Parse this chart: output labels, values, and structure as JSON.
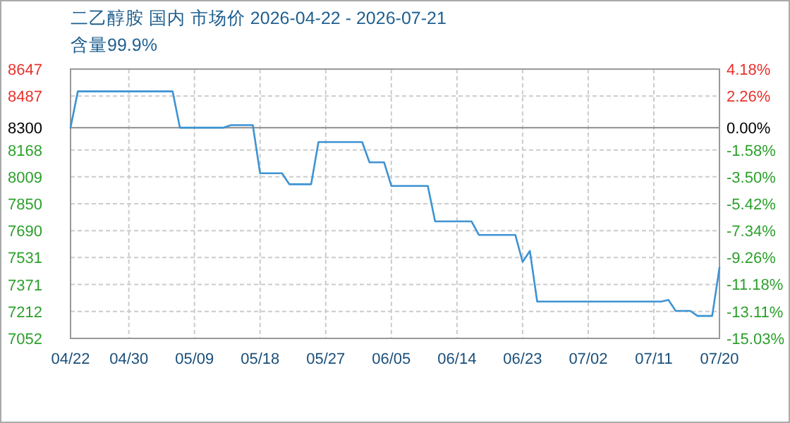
{
  "chart_data": {
    "type": "line",
    "title": "二乙醇胺 国内 市场价 2026-04-22 - 2026-07-21",
    "subtitle": "含量99.9%",
    "x": [
      "--04-22",
      "--04-23",
      "--05-06",
      "--05-07",
      "--05-13",
      "--05-14",
      "--05-17",
      "--05-18",
      "--05-21",
      "--05-22",
      "--05-25",
      "--05-26",
      "--06-01",
      "--06-02",
      "--06-04",
      "--06-05",
      "--06-10",
      "--06-11",
      "--06-16",
      "--06-17",
      "--06-22",
      "--06-23",
      "--06-24",
      "--06-25",
      "--07-12",
      "--07-13",
      "--07-14",
      "--07-16",
      "--07-17",
      "--07-19",
      "--07-20"
    ],
    "series": [
      {
        "color": "#3d93d3",
        "values": [
          8300,
          8515,
          8515,
          8300,
          8300,
          8315,
          8315,
          8030,
          8030,
          7965,
          7965,
          8215,
          8215,
          8095,
          8095,
          7955,
          7955,
          7745,
          7745,
          7665,
          7665,
          7505,
          7570,
          7270,
          7270,
          7280,
          7215,
          7215,
          7185,
          7185,
          7470
        ]
      }
    ],
    "xlim": [
      "--04-22",
      "--07-20"
    ],
    "xticks": [
      {
        "value": "--04-22",
        "label": "04/22"
      },
      {
        "value": "--04-30",
        "label": "04/30"
      },
      {
        "value": "--05-09",
        "label": "05/09"
      },
      {
        "value": "--05-18",
        "label": "05/18"
      },
      {
        "value": "--05-27",
        "label": "05/27"
      },
      {
        "value": "--06-05",
        "label": "06/05"
      },
      {
        "value": "--06-14",
        "label": "06/14"
      },
      {
        "value": "--06-23",
        "label": "06/23"
      },
      {
        "value": "--07-02",
        "label": "07/02"
      },
      {
        "value": "--07-11",
        "label": "07/11"
      },
      {
        "value": "--07-20",
        "label": "07/20"
      }
    ],
    "ylim": [
      7052,
      8647
    ],
    "yticks": [
      8647,
      8487,
      8300,
      8168,
      8009,
      7850,
      7690,
      7531,
      7371,
      7212,
      7052
    ],
    "y2lim": [
      -15.03,
      4.18
    ],
    "y2ticks": [
      {
        "value": 4.18,
        "label": "4.18%"
      },
      {
        "value": 2.26,
        "label": "2.26%"
      },
      {
        "value": 0,
        "label": "0.00%"
      },
      {
        "value": -1.58,
        "label": "-1.58%"
      },
      {
        "value": -3.5,
        "label": "-3.50%"
      },
      {
        "value": -5.42,
        "label": "-5.42%"
      },
      {
        "value": -7.34,
        "label": "-7.34%"
      },
      {
        "value": -9.26,
        "label": "-9.26%"
      },
      {
        "value": -11.18,
        "label": "-11.18%"
      },
      {
        "value": -13.11,
        "label": "-13.11%"
      },
      {
        "value": -15.03,
        "label": "-15.03%"
      }
    ],
    "ref_lines": [
      {
        "axis": "y",
        "value": 8300,
        "color": "#999999"
      }
    ],
    "grid": true,
    "marker": "none",
    "line_style": "solid"
  }
}
